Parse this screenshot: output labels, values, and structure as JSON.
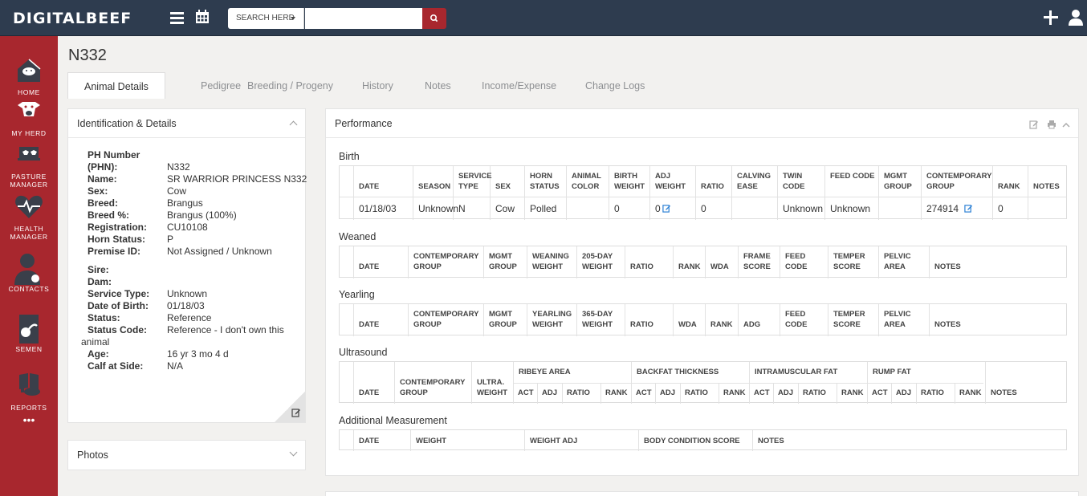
{
  "app": {
    "logo": "DIGITALBEEF"
  },
  "search": {
    "scope_label": "SEARCH HERD",
    "value": "",
    "placeholder": ""
  },
  "sidebar": {
    "items": [
      {
        "label": "HOME",
        "icon": "barn-icon"
      },
      {
        "label": "MY HERD",
        "icon": "cow-icon"
      },
      {
        "label": "PASTURE MANAGER",
        "icon": "pasture-icon"
      },
      {
        "label": "HEALTH MANAGER",
        "icon": "heart-pulse-icon"
      },
      {
        "label": "CONTACTS",
        "icon": "contacts-icon"
      },
      {
        "label": "SEMEN",
        "icon": "semen-icon"
      },
      {
        "label": "REPORTS",
        "icon": "reports-icon"
      }
    ],
    "more": "•••"
  },
  "page": {
    "title": "N332"
  },
  "tabs": [
    "Animal Details",
    "Pedigree",
    "Breeding / Progeny",
    "History",
    "Notes",
    "Income/Expense",
    "Change Logs"
  ],
  "details": {
    "title": "Identification & Details",
    "rows": [
      {
        "label": "PH Number",
        "value": ""
      },
      {
        "label": "(PHN):",
        "value": "N332"
      },
      {
        "label": "Name:",
        "value": "SR WARRIOR PRINCESS N332"
      },
      {
        "label": "Sex:",
        "value": "Cow"
      },
      {
        "label": "Breed:",
        "value": "Brangus"
      },
      {
        "label": "Breed %:",
        "value": "Brangus (100%)"
      },
      {
        "label": "Registration:",
        "value": "CU10108"
      },
      {
        "label": "Horn Status:",
        "value": "P"
      },
      {
        "label": "Premise ID:",
        "value": "Not Assigned / Unknown"
      },
      {
        "label": "Sire:",
        "value": ""
      },
      {
        "label": "Dam:",
        "value": ""
      },
      {
        "label": "Service Type:",
        "value": "Unknown"
      },
      {
        "label": "Date of Birth:",
        "value": "01/18/03"
      },
      {
        "label": "Status:",
        "value": "Reference"
      },
      {
        "label": "Status Code:",
        "value": "Reference - I don't own this"
      },
      {
        "label": "",
        "value": "animal"
      },
      {
        "label": "Age:",
        "value": "16 yr 3 mo 4 d"
      },
      {
        "label": "Calf at Side:",
        "value": "N/A"
      }
    ]
  },
  "photos": {
    "title": "Photos"
  },
  "performance": {
    "title": "Performance",
    "birth": {
      "title": "Birth",
      "headers": [
        "DATE",
        "SEASON",
        "SERVICE TYPE",
        "SEX",
        "HORN STATUS",
        "ANIMAL COLOR",
        "BIRTH WEIGHT",
        "ADJ WEIGHT",
        "RATIO",
        "CALVING EASE",
        "TWIN CODE",
        "FEED CODE",
        "MGMT GROUP",
        "CONTEMPORARY GROUP",
        "RANK",
        "NOTES"
      ],
      "row": [
        "01/18/03",
        "Unknown",
        "N",
        "Cow",
        "Polled",
        "",
        "0",
        "0",
        "0",
        "",
        "Unknown",
        "Unknown",
        "",
        "274914",
        "0",
        ""
      ]
    },
    "weaned": {
      "title": "Weaned",
      "headers": [
        "DATE",
        "CONTEMPORARY GROUP",
        "MGMT GROUP",
        "WEANING WEIGHT",
        "205-DAY WEIGHT",
        "RATIO",
        "RANK",
        "WDA",
        "FRAME SCORE",
        "FEED CODE",
        "TEMPER SCORE",
        "PELVIC AREA",
        "NOTES"
      ]
    },
    "yearling": {
      "title": "Yearling",
      "headers": [
        "DATE",
        "CONTEMPORARY GROUP",
        "MGMT GROUP",
        "YEARLING WEIGHT",
        "365-DAY WEIGHT",
        "RATIO",
        "WDA",
        "RANK",
        "ADG",
        "FEED CODE",
        "TEMPER SCORE",
        "PELVIC AREA",
        "NOTES"
      ]
    },
    "ultrasound": {
      "title": "Ultrasound",
      "headers": [
        "DATE",
        "CONTEMPORARY GROUP",
        "ULTRA. WEIGHT"
      ],
      "groups": [
        "RIBEYE AREA",
        "BACKFAT THICKNESS",
        "INTRAMUSCULAR FAT",
        "RUMP FAT"
      ],
      "sub": [
        "ACT",
        "ADJ",
        "RATIO",
        "RANK"
      ],
      "notes": "NOTES"
    },
    "additional": {
      "title": "Additional Measurement",
      "headers": [
        "DATE",
        "WEIGHT",
        "WEIGHT ADJ",
        "BODY CONDITION SCORE",
        "NOTES"
      ]
    }
  }
}
